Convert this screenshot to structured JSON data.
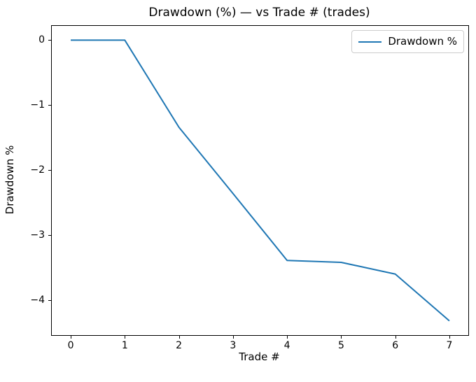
{
  "chart_data": {
    "type": "line",
    "title": "Drawdown (%) — vs Trade # (trades)",
    "xlabel": "Trade #",
    "ylabel": "Drawdown %",
    "grid": false,
    "legend": {
      "position": "upper right",
      "entries": [
        {
          "label": "Drawdown %",
          "color": "#1f77b4"
        }
      ]
    },
    "x": [
      0,
      1,
      2,
      3,
      4,
      5,
      6,
      7
    ],
    "series": [
      {
        "name": "Drawdown %",
        "color": "#1f77b4",
        "values": [
          0,
          0,
          -1.34,
          -2.36,
          -3.39,
          -3.42,
          -3.6,
          -4.32
        ]
      }
    ],
    "xlim": [
      -0.35,
      7.35
    ],
    "ylim": [
      -4.54,
      0.22
    ],
    "xticks": {
      "values": [
        0,
        1,
        2,
        3,
        4,
        5,
        6,
        7
      ],
      "labels": [
        "0",
        "1",
        "2",
        "3",
        "4",
        "5",
        "6",
        "7"
      ]
    },
    "yticks": {
      "values": [
        0,
        -1,
        -2,
        -3,
        -4
      ],
      "labels": [
        "0",
        "−1",
        "−2",
        "−3",
        "−4"
      ]
    }
  },
  "colors": {
    "line": "#1f77b4",
    "spine": "#000000",
    "text": "#000000",
    "legend_border": "#cccccc",
    "background": "#ffffff"
  }
}
